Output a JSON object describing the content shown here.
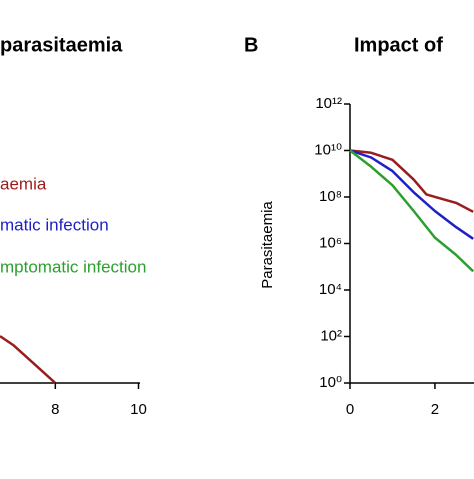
{
  "chart_data": [
    {
      "type": "line",
      "title": "parasitaemia",
      "xlim": [
        6.67,
        10
      ],
      "xticks": [
        8,
        10
      ],
      "ylim": [
        0,
        10
      ],
      "series": [
        {
          "name": "aemia",
          "color": "#9b1c1c",
          "x": [
            6.67,
            7.0,
            7.5,
            8.0
          ],
          "values": [
            1.5,
            1.2,
            0.6,
            0
          ]
        },
        {
          "name": "matic infection",
          "color": "#1f1fc8",
          "x": [],
          "values": []
        },
        {
          "name": "mptomatic infection",
          "color": "#2ca02c",
          "x": [],
          "values": []
        }
      ]
    },
    {
      "type": "line",
      "panel": "B",
      "title": "Impact of",
      "ylabel": "Parasitaemia",
      "log_y": true,
      "xlim": [
        0,
        2.92
      ],
      "xticks": [
        0,
        2
      ],
      "ylim": [
        1,
        1000000000000.0
      ],
      "yticks": [
        {
          "value": 1,
          "label": "10⁰"
        },
        {
          "value": 100,
          "label": "10²"
        },
        {
          "value": 10000,
          "label": "10⁴"
        },
        {
          "value": 1000000,
          "label": "10⁶"
        },
        {
          "value": 100000000,
          "label": "10⁸"
        },
        {
          "value": 10000000000,
          "label": "10¹⁰"
        },
        {
          "value": 1000000000000,
          "label": "10¹²"
        }
      ],
      "series": [
        {
          "color": "#9b1c1c",
          "x": [
            0,
            0.5,
            1,
            1.5,
            1.8,
            2.2,
            2.5,
            2.9
          ],
          "values": [
            10000000000.0,
            8000000000.0,
            4000000000.0,
            560000000.0,
            130000000.0,
            80000000.0,
            56000000.0,
            23000000.0
          ]
        },
        {
          "color": "#1f1fc8",
          "x": [
            0,
            0.5,
            1,
            1.5,
            2,
            2.5,
            2.9
          ],
          "values": [
            10000000000.0,
            5000000000.0,
            1300000000.0,
            160000000.0,
            25000000.0,
            5000000.0,
            1600000.0
          ]
        },
        {
          "color": "#2ca02c",
          "x": [
            0,
            0.5,
            1,
            1.5,
            2,
            2.5,
            2.9
          ],
          "values": [
            10000000000.0,
            2000000000.0,
            320000000.0,
            25000000.0,
            1800000.0,
            320000.0,
            63000.0
          ]
        }
      ]
    }
  ]
}
